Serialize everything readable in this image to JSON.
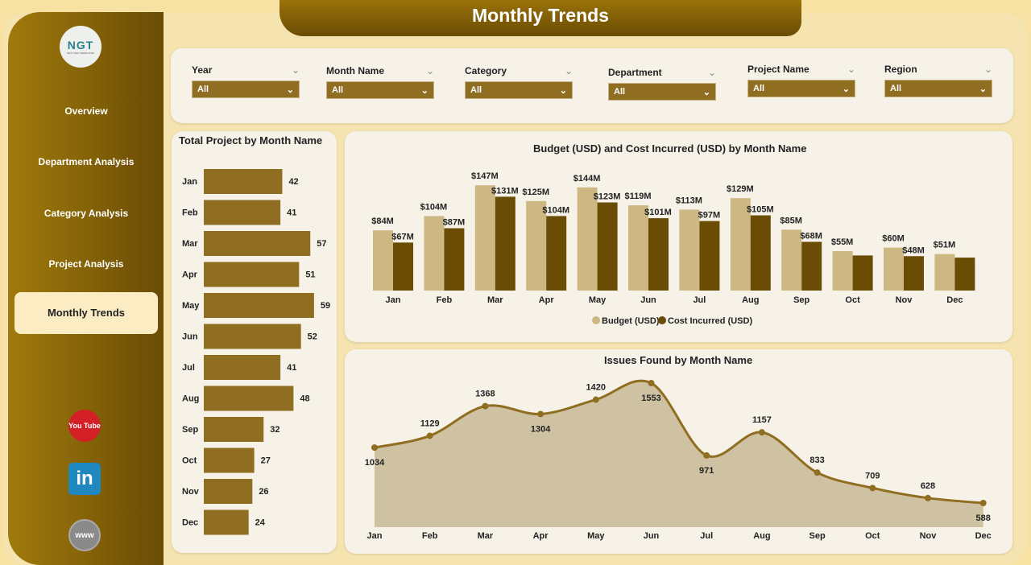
{
  "title": "Monthly Trends",
  "logo": {
    "text": "NGT",
    "subtitle": "NEXT GEN TEMPLATES"
  },
  "nav": [
    {
      "label": "Overview"
    },
    {
      "label": "Department Analysis"
    },
    {
      "label": "Category Analysis"
    },
    {
      "label": "Project Analysis"
    },
    {
      "label": "Monthly Trends",
      "active": true
    }
  ],
  "social": [
    {
      "icon": "youtube-icon",
      "label": "You Tube"
    },
    {
      "icon": "linkedin-icon",
      "label": "in"
    },
    {
      "icon": "globe-icon",
      "label": "www"
    }
  ],
  "filters": [
    {
      "label": "Year",
      "value": "All"
    },
    {
      "label": "Month Name",
      "value": "All"
    },
    {
      "label": "Category",
      "value": "All"
    },
    {
      "label": "Department",
      "value": "All"
    },
    {
      "label": "Project Name",
      "value": "All"
    },
    {
      "label": "Region",
      "value": "All"
    }
  ],
  "colors": {
    "accent": "#8f6d21",
    "budget": "#cdb884",
    "cost": "#6b4c05",
    "line": "#8f6d21",
    "area": "#cfc2a3"
  },
  "chart_data": [
    {
      "type": "bar",
      "orientation": "horizontal",
      "title": "Total Project by Month Name",
      "categories": [
        "Jan",
        "Feb",
        "Mar",
        "Apr",
        "May",
        "Jun",
        "Jul",
        "Aug",
        "Sep",
        "Oct",
        "Nov",
        "Dec"
      ],
      "values": [
        42,
        41,
        57,
        51,
        59,
        52,
        41,
        48,
        32,
        27,
        26,
        24
      ]
    },
    {
      "type": "bar",
      "title": "Budget (USD) and Cost Incurred (USD) by Month Name",
      "categories": [
        "Jan",
        "Feb",
        "Mar",
        "Apr",
        "May",
        "Jun",
        "Jul",
        "Aug",
        "Sep",
        "Oct",
        "Nov",
        "Dec"
      ],
      "legend": "bottom",
      "series": [
        {
          "name": "Budget (USD)",
          "values": [
            84,
            104,
            147,
            125,
            144,
            119,
            113,
            129,
            85,
            55,
            60,
            51
          ],
          "labels": [
            "$84M",
            "$104M",
            "$147M",
            "$125M",
            "$144M",
            "$119M",
            "$113M",
            "$129M",
            "$85M",
            "$55M",
            "$60M",
            "$51M"
          ]
        },
        {
          "name": "Cost Incurred (USD)",
          "values": [
            67,
            87,
            131,
            104,
            123,
            101,
            97,
            105,
            68,
            49,
            48,
            46
          ],
          "labels": [
            "$67M",
            "$87M",
            "$131M",
            "$104M",
            "$123M",
            "$101M",
            "$97M",
            "$105M",
            "$68M",
            "",
            "$48M",
            ""
          ]
        }
      ]
    },
    {
      "type": "area",
      "title": "Issues Found by Month Name",
      "categories": [
        "Jan",
        "Feb",
        "Mar",
        "Apr",
        "May",
        "Jun",
        "Jul",
        "Aug",
        "Sep",
        "Oct",
        "Nov",
        "Dec"
      ],
      "values": [
        1034,
        1129,
        1368,
        1304,
        1420,
        1553,
        971,
        1157,
        833,
        709,
        628,
        588
      ],
      "ylim": [
        394,
        1600
      ]
    }
  ]
}
